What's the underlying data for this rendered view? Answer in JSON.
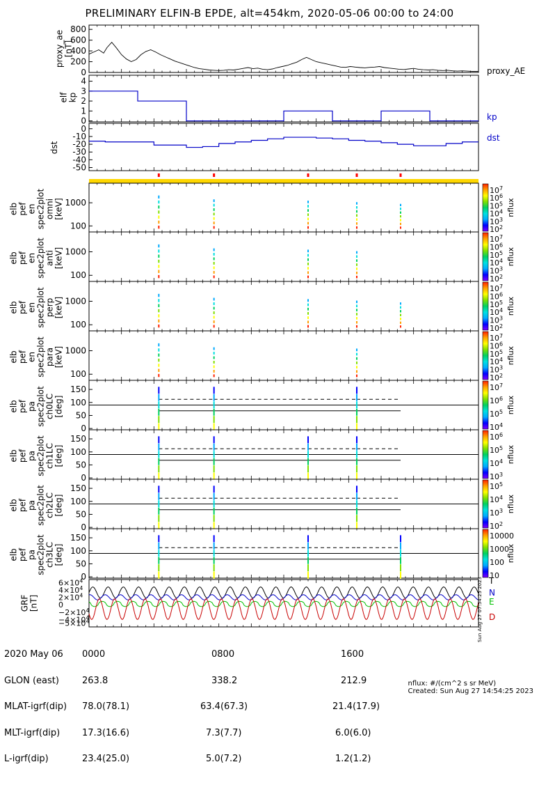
{
  "page_title": "PRELIMINARY ELFIN-B EPDE, alt=454km, 2020-05-06 00:00 to 24:00",
  "colors": {
    "line_blue": "#0000c8",
    "black": "#000000",
    "red_tick": "#ff0000",
    "science_bar": "#ffd700",
    "grf_N": "#0000c8",
    "grf_E": "#00c000",
    "grf_D": "#c80000"
  },
  "chart_data": [
    {
      "type": "line",
      "panel": "proxy_ae",
      "ylabel": [
        "proxy_ae",
        "[nT]"
      ],
      "yticks": [
        "800",
        "600",
        "400",
        "200",
        "0"
      ],
      "ylim": [
        0,
        880
      ],
      "series_label": "proxy_AE",
      "x_hours": [
        0,
        0.3,
        0.6,
        0.9,
        1.1,
        1.4,
        1.7,
        2.0,
        2.3,
        2.6,
        2.9,
        3.2,
        3.5,
        3.8,
        4.1,
        4.4,
        4.7,
        5.0,
        5.3,
        5.6,
        5.9,
        6.2,
        6.5,
        6.8,
        7.1,
        7.4,
        7.7,
        8.0,
        8.3,
        8.6,
        8.9,
        9.2,
        9.5,
        9.8,
        10.1,
        10.4,
        10.7,
        11.0,
        11.3,
        11.6,
        11.9,
        12.2,
        12.5,
        12.8,
        13.1,
        13.4,
        13.7,
        14.0,
        14.3,
        14.6,
        14.9,
        15.2,
        15.5,
        15.8,
        16.1,
        16.4,
        16.7,
        17.0,
        17.3,
        17.6,
        17.9,
        18.2,
        18.5,
        18.8,
        19.1,
        19.4,
        19.7,
        20.0,
        20.3,
        20.6,
        20.9,
        21.2,
        21.5,
        21.8,
        22.1,
        22.4,
        22.7,
        23.0,
        23.3,
        23.6,
        24.0
      ],
      "values": [
        340,
        380,
        420,
        360,
        460,
        560,
        450,
        330,
        250,
        200,
        240,
        330,
        390,
        420,
        380,
        330,
        290,
        250,
        210,
        180,
        150,
        120,
        90,
        70,
        60,
        45,
        40,
        35,
        40,
        50,
        45,
        60,
        75,
        90,
        70,
        80,
        60,
        50,
        65,
        90,
        110,
        130,
        160,
        190,
        240,
        280,
        240,
        200,
        180,
        160,
        140,
        120,
        100,
        95,
        110,
        100,
        90,
        85,
        95,
        100,
        110,
        90,
        80,
        70,
        60,
        55,
        65,
        75,
        60,
        50,
        45,
        50,
        40,
        35,
        40,
        30,
        25,
        30,
        25,
        20,
        20
      ]
    },
    {
      "type": "step",
      "panel": "elf kp",
      "ylabel": [
        "elf",
        "kp"
      ],
      "yticks": [
        "4",
        "3",
        "2",
        "1",
        "0"
      ],
      "ylim": [
        -0.1,
        4.6
      ],
      "series_label": "kp",
      "x_hours": [
        0,
        3,
        6,
        9,
        12,
        15,
        18,
        21,
        24
      ],
      "values": [
        3,
        2,
        0,
        0,
        1,
        0,
        1,
        0
      ]
    },
    {
      "type": "step",
      "panel": "dst",
      "ylabel": [
        "dst"
      ],
      "yticks": [
        "0",
        "-10",
        "-20",
        "-30",
        "-40",
        "-50"
      ],
      "ylim": [
        -54,
        7
      ],
      "series_label": "dst",
      "x_hours": [
        0,
        1,
        2,
        3,
        4,
        5,
        6,
        7,
        8,
        9,
        10,
        11,
        12,
        13,
        14,
        15,
        16,
        17,
        18,
        19,
        20,
        21,
        22,
        23,
        24
      ],
      "values": [
        -16,
        -17,
        -17,
        -17,
        -21,
        -21,
        -24,
        -23,
        -19,
        -17,
        -15,
        -13,
        -11,
        -11,
        -12,
        -13,
        -15,
        -16,
        -18,
        -20,
        -22,
        -22,
        -19,
        -17
      ]
    },
    {
      "type": "heatmap",
      "panel": "elb pef en spec2plot omni",
      "ylabel": [
        "elb",
        "pef",
        "en",
        "spec2plot",
        "omni",
        "[keV]"
      ],
      "yticks": [
        "1000",
        "100"
      ],
      "colorbar_label": "nflux",
      "colorbar_ticks": [
        "10^7",
        "10^6",
        "10^5",
        "10^4",
        "10^3",
        "10^2"
      ],
      "pass_hours": [
        4.3,
        7.7,
        13.5,
        16.5,
        19.2
      ]
    },
    {
      "type": "heatmap",
      "panel": "elb pef en spec2plot anti",
      "ylabel": [
        "elb",
        "pef",
        "en",
        "spec2plot",
        "anti",
        "[keV]"
      ],
      "yticks": [
        "1000",
        "100"
      ],
      "colorbar_label": "nflux",
      "colorbar_ticks": [
        "10^7",
        "10^6",
        "10^5",
        "10^4",
        "10^3",
        "10^2"
      ],
      "pass_hours": [
        4.3,
        7.7,
        13.5,
        16.5
      ]
    },
    {
      "type": "heatmap",
      "panel": "elb pef en spec2plot perp",
      "ylabel": [
        "elb",
        "pef",
        "en",
        "spec2plot",
        "perp",
        "[keV]"
      ],
      "yticks": [
        "1000",
        "100"
      ],
      "colorbar_label": "nflux",
      "colorbar_ticks": [
        "10^7",
        "10^6",
        "10^5",
        "10^4",
        "10^3",
        "10^2"
      ],
      "pass_hours": [
        4.3,
        7.7,
        13.5,
        16.5,
        19.2
      ]
    },
    {
      "type": "heatmap",
      "panel": "elb pef en spec2plot para",
      "ylabel": [
        "elb",
        "pef",
        "en",
        "spec2plot",
        "para",
        "[keV]"
      ],
      "yticks": [
        "1000",
        "100"
      ],
      "colorbar_label": "nflux",
      "colorbar_ticks": [
        "10^7",
        "10^6",
        "10^5",
        "10^4",
        "10^3",
        "10^2"
      ],
      "pass_hours": [
        4.3,
        7.7,
        16.5
      ]
    },
    {
      "type": "heatmap",
      "panel": "elb pef pa spec2plot ch0LC",
      "ylabel": [
        "elb",
        "pef",
        "pa",
        "spec2plot",
        "ch0LC",
        "[deg]"
      ],
      "yticks": [
        "150",
        "100",
        "50",
        "0"
      ],
      "colorbar_label": "nflux",
      "colorbar_ticks": [
        "10^7",
        "10^6",
        "10^5",
        "10^4"
      ],
      "pass_hours": [
        4.3,
        7.7,
        16.5
      ],
      "lc_hours": [
        4.3,
        7.7,
        13.5,
        16.5,
        19.2
      ],
      "lc_deg": 68,
      "alc_deg": 112
    },
    {
      "type": "heatmap",
      "panel": "elb pef pa spec2plot ch1LC",
      "ylabel": [
        "elb",
        "pef",
        "pa",
        "spec2plot",
        "ch1LC",
        "[deg]"
      ],
      "yticks": [
        "150",
        "100",
        "50",
        "0"
      ],
      "colorbar_label": "nflux",
      "colorbar_ticks": [
        "10^6",
        "10^5",
        "10^4",
        "10^3"
      ],
      "pass_hours": [
        4.3,
        7.7,
        13.5,
        16.5
      ],
      "lc_hours": [
        4.3,
        7.7,
        13.5,
        16.5,
        19.2
      ],
      "lc_deg": 68,
      "alc_deg": 112
    },
    {
      "type": "heatmap",
      "panel": "elb pef pa spec2plot ch2LC",
      "ylabel": [
        "elb",
        "pef",
        "pa",
        "spec2plot",
        "ch2LC",
        "[deg]"
      ],
      "yticks": [
        "150",
        "100",
        "50",
        "0"
      ],
      "colorbar_label": "nflux",
      "colorbar_ticks": [
        "10^5",
        "10^4",
        "10^3",
        "10^2"
      ],
      "pass_hours": [
        4.3,
        7.7,
        16.5
      ],
      "lc_hours": [
        4.3,
        7.7,
        13.5,
        16.5,
        19.2
      ],
      "lc_deg": 68,
      "alc_deg": 112
    },
    {
      "type": "heatmap",
      "panel": "elb pef pa spec2plot ch3LC",
      "ylabel": [
        "elb",
        "pef",
        "pa",
        "spec2plot",
        "ch3LC",
        "[deg]"
      ],
      "yticks": [
        "150",
        "100",
        "50",
        "0"
      ],
      "colorbar_label": "nflux",
      "colorbar_ticks": [
        "10000",
        "1000",
        "100",
        "10"
      ],
      "pass_hours": [
        4.3,
        7.7,
        13.5,
        19.2
      ],
      "lc_hours": [
        4.3,
        7.7,
        13.5,
        16.5,
        19.2
      ],
      "lc_deg": 68,
      "alc_deg": 112
    },
    {
      "type": "line",
      "panel": "GRF",
      "ylabel": [
        "GRF",
        "[nT]"
      ],
      "yticks": [
        "6×10^4",
        "4×10^4",
        "2×10^4",
        "0",
        "−2×10^4",
        "−4×10^4",
        "−5×10^4"
      ],
      "legend": [
        "T",
        "N",
        "E",
        "D"
      ],
      "orbit_period_hours": 0.94
    }
  ],
  "science_zone_marks_hours": [
    4.3,
    7.7,
    13.5,
    16.5,
    19.2
  ],
  "x_axis": {
    "ticks_hours": [
      0,
      8,
      16
    ],
    "rows": [
      {
        "label": "2020 May 06",
        "values": [
          "0000",
          "0800",
          "1600"
        ]
      },
      {
        "label": "GLON (east)",
        "values": [
          "263.8",
          "338.2",
          "212.9"
        ]
      },
      {
        "label": "MLAT-igrf(dip)",
        "values": [
          "78.0(78.1)",
          "63.4(67.3)",
          "21.4(17.9)"
        ]
      },
      {
        "label": "MLT-igrf(dip)",
        "values": [
          "17.3(16.6)",
          "7.3(7.7)",
          "6.0(6.0)"
        ]
      },
      {
        "label": "L-igrf(dip)",
        "values": [
          "23.4(25.0)",
          "5.0(7.2)",
          "1.2(1.2)"
        ]
      }
    ]
  },
  "side_note": "Sun Aug 27 07:54:25 2023",
  "footnote_units": "nflux: #/(cm^2 s sr MeV)",
  "footnote_created": "Created: Sun Aug 27 14:54:25 2023"
}
